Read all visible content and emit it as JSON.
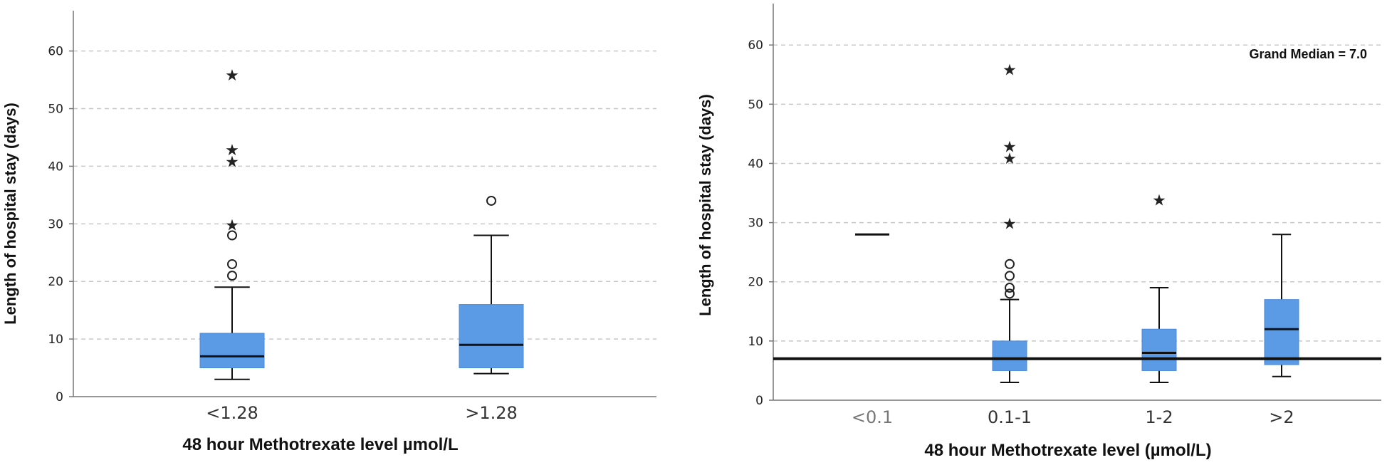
{
  "colors": {
    "box": "#5b9be6",
    "box_edge": "#4a88d8",
    "grid": "#c8c8c8",
    "axis": "#777777",
    "line": "#111111"
  },
  "chart_data": [
    {
      "type": "boxplot",
      "xlabel": "48 hour Methotrexate level µmol/L",
      "ylabel": "Length of hospital stay (days)",
      "ylim": [
        0,
        67
      ],
      "yticks": [
        0,
        10,
        20,
        30,
        40,
        50,
        60
      ],
      "grid": true,
      "categories": [
        "<1.28",
        ">1.28"
      ],
      "boxes": [
        {
          "category": "<1.28",
          "whisker_low": 3,
          "q1": 5,
          "median": 7,
          "q3": 11,
          "whisker_high": 19,
          "outliers": [
            21,
            23,
            28
          ],
          "extremes": [
            30,
            41,
            43,
            56
          ]
        },
        {
          "category": ">1.28",
          "whisker_low": 4,
          "q1": 5,
          "median": 9,
          "q3": 16,
          "whisker_high": 28,
          "outliers": [
            34
          ],
          "extremes": []
        }
      ]
    },
    {
      "type": "boxplot",
      "xlabel": "48 hour Methotrexate level (µmol/L)",
      "ylabel": "Length of hospital stay (days)",
      "ylim": [
        0,
        67
      ],
      "yticks": [
        0,
        10,
        20,
        30,
        40,
        50,
        60
      ],
      "grid": true,
      "annotation": "Grand Median = 7.0",
      "grand_median": 7.0,
      "categories": [
        "<0.1",
        "0.1-1",
        "1-2",
        ">2"
      ],
      "boxes": [
        {
          "category": "<0.1",
          "single_value": 28
        },
        {
          "category": "0.1-1",
          "whisker_low": 3,
          "q1": 5,
          "median": 7,
          "q3": 10,
          "whisker_high": 17,
          "outliers": [
            18,
            19,
            21,
            23
          ],
          "extremes": [
            30,
            41,
            43,
            56
          ]
        },
        {
          "category": "1-2",
          "whisker_low": 3,
          "q1": 5,
          "median": 8,
          "q3": 12,
          "whisker_high": 19,
          "outliers": [],
          "extremes": [
            34
          ]
        },
        {
          "category": ">2",
          "whisker_low": 4,
          "q1": 6,
          "median": 12,
          "q3": 17,
          "whisker_high": 28,
          "outliers": [],
          "extremes": []
        }
      ]
    }
  ]
}
